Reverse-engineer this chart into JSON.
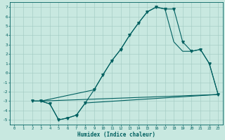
{
  "xlabel": "Humidex (Indice chaleur)",
  "bg_color": "#c8e8e0",
  "line_color": "#006060",
  "grid_color": "#a0c8c0",
  "spine_color": "#006060",
  "xlim": [
    -0.5,
    23.5
  ],
  "ylim": [
    -5.5,
    7.5
  ],
  "xticks": [
    0,
    1,
    2,
    3,
    4,
    5,
    6,
    7,
    8,
    9,
    10,
    11,
    12,
    13,
    14,
    15,
    16,
    17,
    18,
    19,
    20,
    21,
    22,
    23
  ],
  "yticks": [
    -5,
    -4,
    -3,
    -2,
    -1,
    0,
    1,
    2,
    3,
    4,
    5,
    6,
    7
  ],
  "line1_x": [
    2,
    3,
    4,
    5,
    6,
    7,
    8,
    9,
    10,
    11,
    12,
    13,
    14,
    15,
    16,
    17,
    18,
    19,
    20,
    21,
    22,
    23
  ],
  "line1_y": [
    -3,
    -3,
    -3.3,
    -5,
    -4.8,
    -4.5,
    -3.2,
    -1.8,
    -0.2,
    1.3,
    2.5,
    4.0,
    5.3,
    6.5,
    7.0,
    6.8,
    6.8,
    3.3,
    2.3,
    2.5,
    1.0,
    -2.3
  ],
  "line2_x": [
    2,
    3,
    23
  ],
  "line2_y": [
    -3,
    -3,
    -2.3
  ],
  "line3_x": [
    2,
    3,
    9,
    10,
    11,
    12,
    13,
    14,
    15,
    16,
    17,
    18,
    19,
    20,
    21,
    22,
    23
  ],
  "line3_y": [
    -3,
    -3,
    -1.8,
    -0.2,
    1.3,
    2.5,
    4.0,
    5.3,
    6.5,
    7.0,
    6.8,
    3.3,
    2.3,
    2.3,
    2.5,
    1.0,
    -2.3
  ],
  "line4_x": [
    2,
    3,
    4,
    5,
    6,
    7,
    8,
    23
  ],
  "line4_y": [
    -3,
    -3,
    -3.3,
    -5,
    -4.8,
    -4.5,
    -3.2,
    -2.3
  ],
  "marker": "v",
  "markersize": 2.5,
  "linewidth": 0.8
}
